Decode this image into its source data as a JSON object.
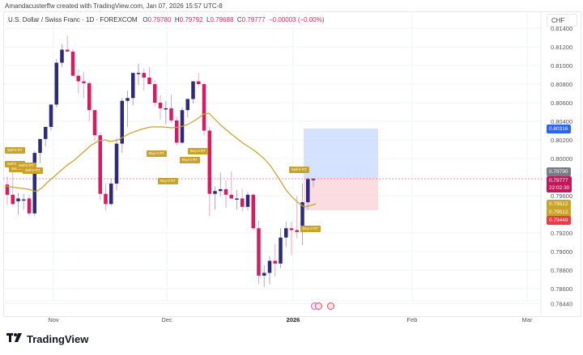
{
  "credit": "Amandacusterffw created with TradingView.com, Jan 07, 2026 15:57 UTC-8",
  "legend": {
    "symbol": "U.S. Dollar / Swiss Franc · 1D · FOREXCOM",
    "open_label": "O",
    "open": "0.79780",
    "high_label": "H",
    "high": "0.79792",
    "low_label": "L",
    "low": "0.79688",
    "close_label": "C",
    "close": "0.79777",
    "change": "−0.00003 (−0.00%)"
  },
  "currency_button": "CHF",
  "price_axis": {
    "ticks": [
      "0.81400",
      "0.81200",
      "0.81000",
      "0.80800",
      "0.80600",
      "0.80400",
      "0.80200",
      "0.80000",
      "0.79600",
      "0.79200",
      "0.79000",
      "0.78800",
      "0.78600",
      "0.78440"
    ],
    "tags": [
      {
        "label": "0.80316",
        "color": "#2962ff"
      },
      {
        "label": "0.79790",
        "color": "#787b86"
      },
      {
        "label": "0.79777",
        "sub": "22:02:30",
        "color": "#c2185b"
      },
      {
        "label": "0.79512",
        "color": "#c9a227"
      },
      {
        "label": "0.79512",
        "color": "#c9a227"
      },
      {
        "label": "0.79449",
        "color": "#f23645"
      }
    ]
  },
  "time_axis": {
    "labels": [
      "Nov",
      "Dec",
      "2026",
      "Feb",
      "Mar"
    ]
  },
  "signals": {
    "sell": "Sell-0 RT",
    "buy": "Buy-0 RT"
  },
  "footer": {
    "logo_mark": "TV",
    "logo_text": "TradingView"
  },
  "colors": {
    "up": "#2e2a7a",
    "down": "#d81b60",
    "ma": "#c9a227",
    "profit": "#cddcff",
    "loss": "#fbd9de",
    "current": "#e0245e"
  },
  "chart_data": {
    "type": "candlestick",
    "title": "U.S. Dollar / Swiss Franc · 1D · FOREXCOM",
    "ylabel": "CHF",
    "ylim": [
      0.7844,
      0.814
    ],
    "x_labels": [
      "Nov",
      "Dec",
      "2026",
      "Feb",
      "Mar"
    ],
    "ohlc": [
      {
        "o": 0.7972,
        "h": 0.7981,
        "l": 0.795,
        "c": 0.7961
      },
      {
        "o": 0.7961,
        "h": 0.7985,
        "l": 0.795,
        "c": 0.7951
      },
      {
        "o": 0.7954,
        "h": 0.7963,
        "l": 0.794,
        "c": 0.7957
      },
      {
        "o": 0.7956,
        "h": 0.7962,
        "l": 0.7945,
        "c": 0.7956
      },
      {
        "o": 0.7957,
        "h": 0.7961,
        "l": 0.7938,
        "c": 0.7941
      },
      {
        "o": 0.7941,
        "h": 0.8008,
        "l": 0.7938,
        "c": 0.8006
      },
      {
        "o": 0.8006,
        "h": 0.802,
        "l": 0.7995,
        "c": 0.8021
      },
      {
        "o": 0.8021,
        "h": 0.8032,
        "l": 0.8013,
        "c": 0.8034
      },
      {
        "o": 0.8034,
        "h": 0.8054,
        "l": 0.803,
        "c": 0.8058
      },
      {
        "o": 0.8058,
        "h": 0.8107,
        "l": 0.8055,
        "c": 0.8103
      },
      {
        "o": 0.8103,
        "h": 0.8123,
        "l": 0.8098,
        "c": 0.8117
      },
      {
        "o": 0.8117,
        "h": 0.8132,
        "l": 0.8115,
        "c": 0.8115
      },
      {
        "o": 0.8115,
        "h": 0.8118,
        "l": 0.8088,
        "c": 0.8089
      },
      {
        "o": 0.8089,
        "h": 0.8096,
        "l": 0.807,
        "c": 0.8083
      },
      {
        "o": 0.8083,
        "h": 0.8093,
        "l": 0.8065,
        "c": 0.8081
      },
      {
        "o": 0.8081,
        "h": 0.8083,
        "l": 0.804,
        "c": 0.8052
      },
      {
        "o": 0.8052,
        "h": 0.8033,
        "l": 0.8019,
        "c": 0.8025
      },
      {
        "o": 0.8025,
        "h": 0.8028,
        "l": 0.7955,
        "c": 0.7962
      },
      {
        "o": 0.7962,
        "h": 0.7973,
        "l": 0.7944,
        "c": 0.7951
      },
      {
        "o": 0.7951,
        "h": 0.7979,
        "l": 0.7949,
        "c": 0.7973
      },
      {
        "o": 0.7973,
        "h": 0.8022,
        "l": 0.7966,
        "c": 0.8016
      },
      {
        "o": 0.8016,
        "h": 0.8065,
        "l": 0.8006,
        "c": 0.8062
      },
      {
        "o": 0.8062,
        "h": 0.8073,
        "l": 0.8034,
        "c": 0.8065
      },
      {
        "o": 0.8065,
        "h": 0.8092,
        "l": 0.8057,
        "c": 0.8092
      },
      {
        "o": 0.8092,
        "h": 0.8102,
        "l": 0.8079,
        "c": 0.8092
      },
      {
        "o": 0.8092,
        "h": 0.8097,
        "l": 0.8073,
        "c": 0.8087
      },
      {
        "o": 0.8087,
        "h": 0.8098,
        "l": 0.808,
        "c": 0.808
      },
      {
        "o": 0.808,
        "h": 0.8084,
        "l": 0.8056,
        "c": 0.806
      },
      {
        "o": 0.806,
        "h": 0.8068,
        "l": 0.8042,
        "c": 0.8054
      },
      {
        "o": 0.8054,
        "h": 0.8062,
        "l": 0.8037,
        "c": 0.8054
      },
      {
        "o": 0.8054,
        "h": 0.8069,
        "l": 0.8038,
        "c": 0.8041
      },
      {
        "o": 0.8041,
        "h": 0.8045,
        "l": 0.8014,
        "c": 0.8017
      },
      {
        "o": 0.8017,
        "h": 0.8055,
        "l": 0.8016,
        "c": 0.8052
      },
      {
        "o": 0.8052,
        "h": 0.8064,
        "l": 0.8044,
        "c": 0.8064
      },
      {
        "o": 0.8064,
        "h": 0.8081,
        "l": 0.8059,
        "c": 0.8083
      },
      {
        "o": 0.8083,
        "h": 0.8092,
        "l": 0.8077,
        "c": 0.808
      },
      {
        "o": 0.808,
        "h": 0.8082,
        "l": 0.8025,
        "c": 0.803
      },
      {
        "o": 0.803,
        "h": 0.8034,
        "l": 0.7938,
        "c": 0.7962
      },
      {
        "o": 0.7962,
        "h": 0.797,
        "l": 0.7945,
        "c": 0.7965
      },
      {
        "o": 0.7965,
        "h": 0.7985,
        "l": 0.7959,
        "c": 0.7967
      },
      {
        "o": 0.7967,
        "h": 0.7977,
        "l": 0.7947,
        "c": 0.7961
      },
      {
        "o": 0.7961,
        "h": 0.7986,
        "l": 0.7957,
        "c": 0.7957
      },
      {
        "o": 0.7957,
        "h": 0.7966,
        "l": 0.7945,
        "c": 0.7957
      },
      {
        "o": 0.7957,
        "h": 0.7967,
        "l": 0.7943,
        "c": 0.7948
      },
      {
        "o": 0.7948,
        "h": 0.7964,
        "l": 0.7944,
        "c": 0.7961
      },
      {
        "o": 0.7961,
        "h": 0.7963,
        "l": 0.7923,
        "c": 0.7925
      },
      {
        "o": 0.7925,
        "h": 0.7933,
        "l": 0.7865,
        "c": 0.7874
      },
      {
        "o": 0.7874,
        "h": 0.7885,
        "l": 0.7862,
        "c": 0.7877
      },
      {
        "o": 0.7877,
        "h": 0.7895,
        "l": 0.7865,
        "c": 0.789
      },
      {
        "o": 0.789,
        "h": 0.7908,
        "l": 0.7873,
        "c": 0.7887
      },
      {
        "o": 0.7887,
        "h": 0.7925,
        "l": 0.7882,
        "c": 0.7915
      },
      {
        "o": 0.7915,
        "h": 0.7932,
        "l": 0.7905,
        "c": 0.7925
      },
      {
        "o": 0.7925,
        "h": 0.7932,
        "l": 0.7896,
        "c": 0.7923
      },
      {
        "o": 0.7923,
        "h": 0.796,
        "l": 0.7914,
        "c": 0.7921
      },
      {
        "o": 0.7921,
        "h": 0.7973,
        "l": 0.7907,
        "c": 0.7953
      },
      {
        "o": 0.7953,
        "h": 0.798,
        "l": 0.7945,
        "c": 0.7978
      },
      {
        "o": 0.7978,
        "h": 0.7979,
        "l": 0.7969,
        "c": 0.7978
      }
    ],
    "moving_average": "yellow MA line",
    "position": {
      "entry": 0.7979,
      "target": 0.80316,
      "stop": 0.79449
    },
    "current_price": 0.79777
  }
}
